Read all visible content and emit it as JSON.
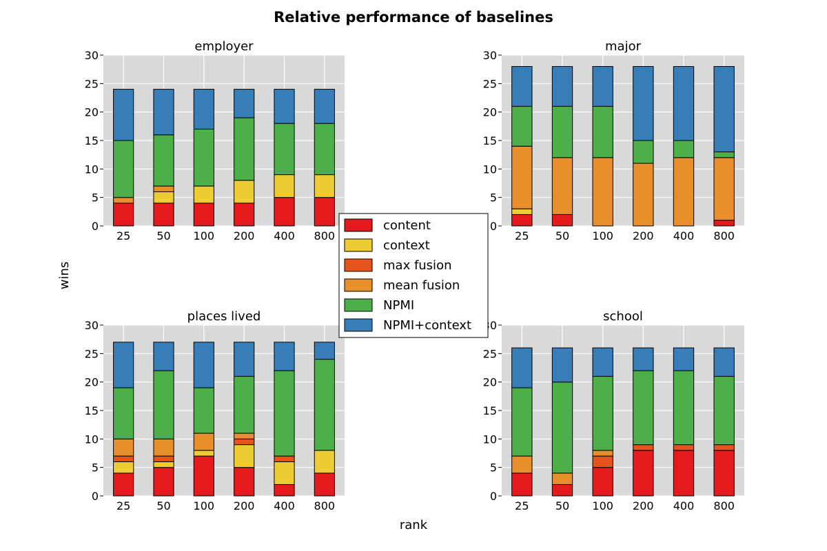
{
  "figure": {
    "title": "Relative performance of baselines",
    "xlabel": "rank",
    "ylabel": "wins"
  },
  "legend": {
    "placement": "center",
    "items": [
      {
        "label": "content",
        "color": "#e41a1c"
      },
      {
        "label": "context",
        "color": "#eecc33"
      },
      {
        "label": "max fusion",
        "color": "#e6541e"
      },
      {
        "label": "mean fusion",
        "color": "#e88e2a"
      },
      {
        "label": "NPMI",
        "color": "#4caf4a"
      },
      {
        "label": "NPMI+context",
        "color": "#377eb8"
      }
    ]
  },
  "chart_data": [
    {
      "type": "bar",
      "stacked": true,
      "title": "employer",
      "categories": [
        "25",
        "50",
        "100",
        "200",
        "400",
        "800"
      ],
      "ylim": [
        0,
        30
      ],
      "yticks": [
        0,
        5,
        10,
        15,
        20,
        25,
        30
      ],
      "grid": true,
      "series": [
        {
          "name": "content",
          "values": [
            4,
            4,
            4,
            4,
            5,
            5
          ]
        },
        {
          "name": "context",
          "values": [
            0,
            2,
            3,
            4,
            4,
            4
          ]
        },
        {
          "name": "max fusion",
          "values": [
            0,
            0,
            0,
            0,
            0,
            0
          ]
        },
        {
          "name": "mean fusion",
          "values": [
            1,
            1,
            0,
            0,
            0,
            0
          ]
        },
        {
          "name": "NPMI",
          "values": [
            10,
            9,
            10,
            11,
            9,
            9
          ]
        },
        {
          "name": "NPMI+context",
          "values": [
            9,
            8,
            7,
            5,
            6,
            6
          ]
        }
      ]
    },
    {
      "type": "bar",
      "stacked": true,
      "title": "major",
      "categories": [
        "25",
        "50",
        "100",
        "200",
        "400",
        "800"
      ],
      "ylim": [
        0,
        30
      ],
      "yticks": [
        0,
        5,
        10,
        15,
        20,
        25,
        30
      ],
      "grid": true,
      "series": [
        {
          "name": "content",
          "values": [
            2,
            2,
            0,
            0,
            0,
            1
          ]
        },
        {
          "name": "context",
          "values": [
            1,
            0,
            0,
            0,
            0,
            0
          ]
        },
        {
          "name": "max fusion",
          "values": [
            0,
            0,
            0,
            0,
            0,
            0
          ]
        },
        {
          "name": "mean fusion",
          "values": [
            11,
            10,
            12,
            11,
            12,
            11
          ]
        },
        {
          "name": "NPMI",
          "values": [
            7,
            9,
            9,
            4,
            3,
            1
          ]
        },
        {
          "name": "NPMI+context",
          "values": [
            7,
            7,
            7,
            13,
            13,
            15
          ]
        }
      ]
    },
    {
      "type": "bar",
      "stacked": true,
      "title": "places lived",
      "categories": [
        "25",
        "50",
        "100",
        "200",
        "400",
        "800"
      ],
      "ylim": [
        0,
        30
      ],
      "yticks": [
        0,
        5,
        10,
        15,
        20,
        25,
        30
      ],
      "grid": true,
      "series": [
        {
          "name": "content",
          "values": [
            4,
            5,
            7,
            5,
            2,
            4
          ]
        },
        {
          "name": "context",
          "values": [
            2,
            1,
            1,
            4,
            4,
            4
          ]
        },
        {
          "name": "max fusion",
          "values": [
            1,
            1,
            0,
            1,
            1,
            0
          ]
        },
        {
          "name": "mean fusion",
          "values": [
            3,
            3,
            3,
            1,
            0,
            0
          ]
        },
        {
          "name": "NPMI",
          "values": [
            9,
            12,
            8,
            10,
            15,
            16
          ]
        },
        {
          "name": "NPMI+context",
          "values": [
            8,
            5,
            8,
            6,
            5,
            3
          ]
        }
      ]
    },
    {
      "type": "bar",
      "stacked": true,
      "title": "school",
      "categories": [
        "25",
        "50",
        "100",
        "200",
        "400",
        "800"
      ],
      "ylim": [
        0,
        30
      ],
      "yticks": [
        0,
        5,
        10,
        15,
        20,
        25,
        30
      ],
      "grid": true,
      "series": [
        {
          "name": "content",
          "values": [
            4,
            2,
            5,
            8,
            8,
            8
          ]
        },
        {
          "name": "context",
          "values": [
            0,
            0,
            0,
            0,
            0,
            0
          ]
        },
        {
          "name": "max fusion",
          "values": [
            0,
            0,
            2,
            1,
            1,
            1
          ]
        },
        {
          "name": "mean fusion",
          "values": [
            3,
            2,
            1,
            0,
            0,
            0
          ]
        },
        {
          "name": "NPMI",
          "values": [
            12,
            16,
            13,
            13,
            13,
            12
          ]
        },
        {
          "name": "NPMI+context",
          "values": [
            7,
            6,
            5,
            4,
            4,
            5
          ]
        }
      ]
    }
  ]
}
